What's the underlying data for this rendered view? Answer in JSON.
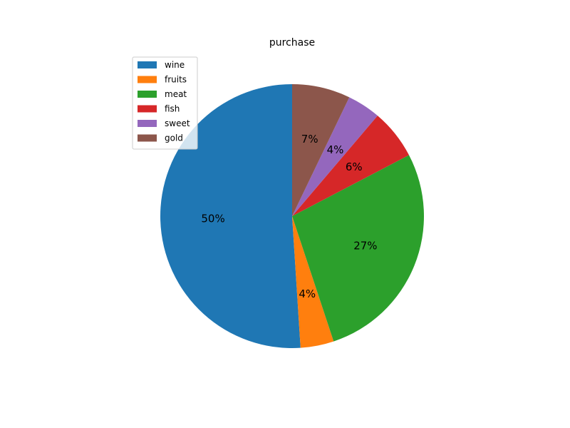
{
  "chart_data": {
    "type": "pie",
    "title": "purchase",
    "categories": [
      "wine",
      "fruits",
      "meat",
      "fish",
      "sweet",
      "gold"
    ],
    "values": [
      50,
      4,
      27,
      6,
      4,
      7
    ],
    "labels": [
      "50%",
      "4%",
      "27%",
      "6%",
      "4%",
      "7%"
    ],
    "colors": [
      "#1f77b4",
      "#ff7f0e",
      "#2ca02c",
      "#d62728",
      "#9467bd",
      "#8c564b"
    ],
    "start_angle": 90,
    "direction": "counterclockwise",
    "legend_position": "upper-left"
  }
}
